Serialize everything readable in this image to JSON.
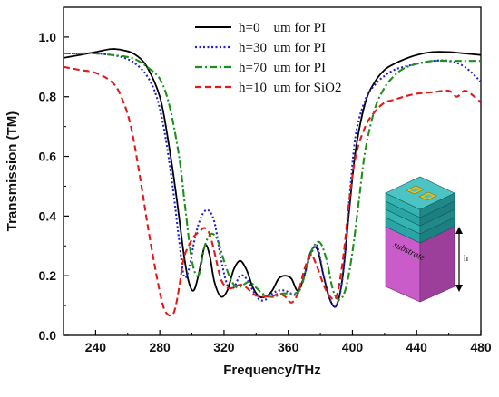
{
  "chart_data": {
    "type": "line",
    "xlabel": "Frequency/THz",
    "ylabel": "Transmission (TM)",
    "xlim": [
      220,
      480
    ],
    "ylim": [
      0.0,
      1.1
    ],
    "x_ticks": [
      240,
      280,
      320,
      360,
      400,
      440,
      480
    ],
    "x_tick_labels": [
      "240",
      "280",
      "320",
      "360",
      "400",
      "440",
      "480"
    ],
    "y_ticks": [
      0.0,
      0.2,
      0.4,
      0.6,
      0.8,
      1.0
    ],
    "y_tick_labels": [
      "0.0",
      "0.2",
      "0.4",
      "0.6",
      "0.8",
      "1.0"
    ],
    "grid": false,
    "legend_position": "top-center",
    "series": [
      {
        "name": "h=0    um for PI",
        "color": "#000000",
        "dash": "solid",
        "x": [
          220,
          230,
          240,
          250,
          258,
          265,
          272,
          280,
          285,
          290,
          295,
          298,
          301,
          304,
          308,
          311,
          314,
          318,
          322,
          326,
          330,
          334,
          338,
          342,
          346,
          350,
          354,
          358,
          362,
          366,
          370,
          374,
          378,
          382,
          386,
          390,
          394,
          398,
          402,
          408,
          414,
          420,
          426,
          432,
          440,
          450,
          460,
          470,
          480
        ],
        "y": [
          0.93,
          0.94,
          0.95,
          0.96,
          0.955,
          0.94,
          0.9,
          0.8,
          0.66,
          0.48,
          0.27,
          0.18,
          0.15,
          0.2,
          0.3,
          0.27,
          0.18,
          0.13,
          0.15,
          0.22,
          0.25,
          0.22,
          0.16,
          0.13,
          0.13,
          0.15,
          0.19,
          0.2,
          0.19,
          0.15,
          0.2,
          0.28,
          0.29,
          0.2,
          0.12,
          0.1,
          0.2,
          0.42,
          0.62,
          0.78,
          0.85,
          0.89,
          0.91,
          0.925,
          0.94,
          0.95,
          0.95,
          0.945,
          0.94
        ]
      },
      {
        "name": "h=30  um for PI",
        "color": "#1f1fd8",
        "dash": "dotted",
        "x": [
          220,
          230,
          240,
          250,
          258,
          265,
          272,
          278,
          283,
          288,
          292,
          295,
          298,
          302,
          306,
          310,
          314,
          318,
          322,
          326,
          330,
          334,
          338,
          342,
          346,
          350,
          354,
          358,
          362,
          366,
          370,
          374,
          378,
          382,
          386,
          390,
          394,
          398,
          402,
          408,
          414,
          420,
          426,
          432,
          440,
          450,
          460,
          470,
          480
        ],
        "y": [
          0.945,
          0.945,
          0.945,
          0.94,
          0.93,
          0.91,
          0.87,
          0.8,
          0.68,
          0.5,
          0.32,
          0.2,
          0.22,
          0.33,
          0.4,
          0.42,
          0.38,
          0.26,
          0.17,
          0.16,
          0.2,
          0.19,
          0.15,
          0.12,
          0.12,
          0.14,
          0.15,
          0.15,
          0.14,
          0.14,
          0.2,
          0.27,
          0.3,
          0.2,
          0.12,
          0.1,
          0.2,
          0.45,
          0.67,
          0.79,
          0.84,
          0.87,
          0.89,
          0.9,
          0.91,
          0.92,
          0.92,
          0.9,
          0.85
        ]
      },
      {
        "name": "h=70  um for PI",
        "color": "#1e8f1e",
        "dash": "dashdot",
        "x": [
          220,
          230,
          240,
          250,
          258,
          265,
          272,
          280,
          286,
          292,
          296,
          300,
          304,
          308,
          312,
          316,
          320,
          324,
          328,
          332,
          336,
          340,
          344,
          348,
          352,
          356,
          360,
          364,
          368,
          372,
          376,
          380,
          384,
          388,
          392,
          396,
          400,
          404,
          408,
          414,
          420,
          426,
          432,
          440,
          450,
          460,
          470,
          480
        ],
        "y": [
          0.945,
          0.945,
          0.945,
          0.94,
          0.935,
          0.925,
          0.9,
          0.86,
          0.77,
          0.6,
          0.42,
          0.25,
          0.2,
          0.3,
          0.34,
          0.32,
          0.25,
          0.19,
          0.16,
          0.17,
          0.18,
          0.16,
          0.14,
          0.13,
          0.13,
          0.14,
          0.14,
          0.14,
          0.16,
          0.24,
          0.3,
          0.31,
          0.25,
          0.15,
          0.12,
          0.16,
          0.28,
          0.45,
          0.62,
          0.76,
          0.83,
          0.87,
          0.895,
          0.91,
          0.92,
          0.92,
          0.92,
          0.92
        ]
      },
      {
        "name": "h=10  um for SiO2",
        "color": "#e01b1b",
        "dash": "dashed",
        "x": [
          220,
          230,
          240,
          250,
          256,
          262,
          268,
          273,
          278,
          282,
          285,
          288,
          290,
          292,
          295,
          298,
          301,
          305,
          308,
          311,
          314,
          318,
          322,
          326,
          330,
          334,
          338,
          342,
          346,
          350,
          354,
          358,
          362,
          366,
          370,
          374,
          378,
          382,
          386,
          390,
          394,
          398,
          402,
          408,
          414,
          420,
          426,
          432,
          440,
          450,
          460,
          465,
          470,
          476,
          480
        ],
        "y": [
          0.9,
          0.89,
          0.88,
          0.85,
          0.8,
          0.7,
          0.52,
          0.35,
          0.2,
          0.1,
          0.07,
          0.07,
          0.1,
          0.16,
          0.26,
          0.3,
          0.33,
          0.35,
          0.36,
          0.34,
          0.28,
          0.19,
          0.16,
          0.16,
          0.17,
          0.16,
          0.14,
          0.13,
          0.13,
          0.13,
          0.14,
          0.13,
          0.11,
          0.14,
          0.22,
          0.27,
          0.23,
          0.17,
          0.13,
          0.13,
          0.25,
          0.45,
          0.6,
          0.7,
          0.75,
          0.78,
          0.79,
          0.8,
          0.81,
          0.815,
          0.82,
          0.8,
          0.82,
          0.8,
          0.78
        ]
      }
    ],
    "inset": {
      "substrate_label": "substrate",
      "height_label": "h"
    }
  }
}
